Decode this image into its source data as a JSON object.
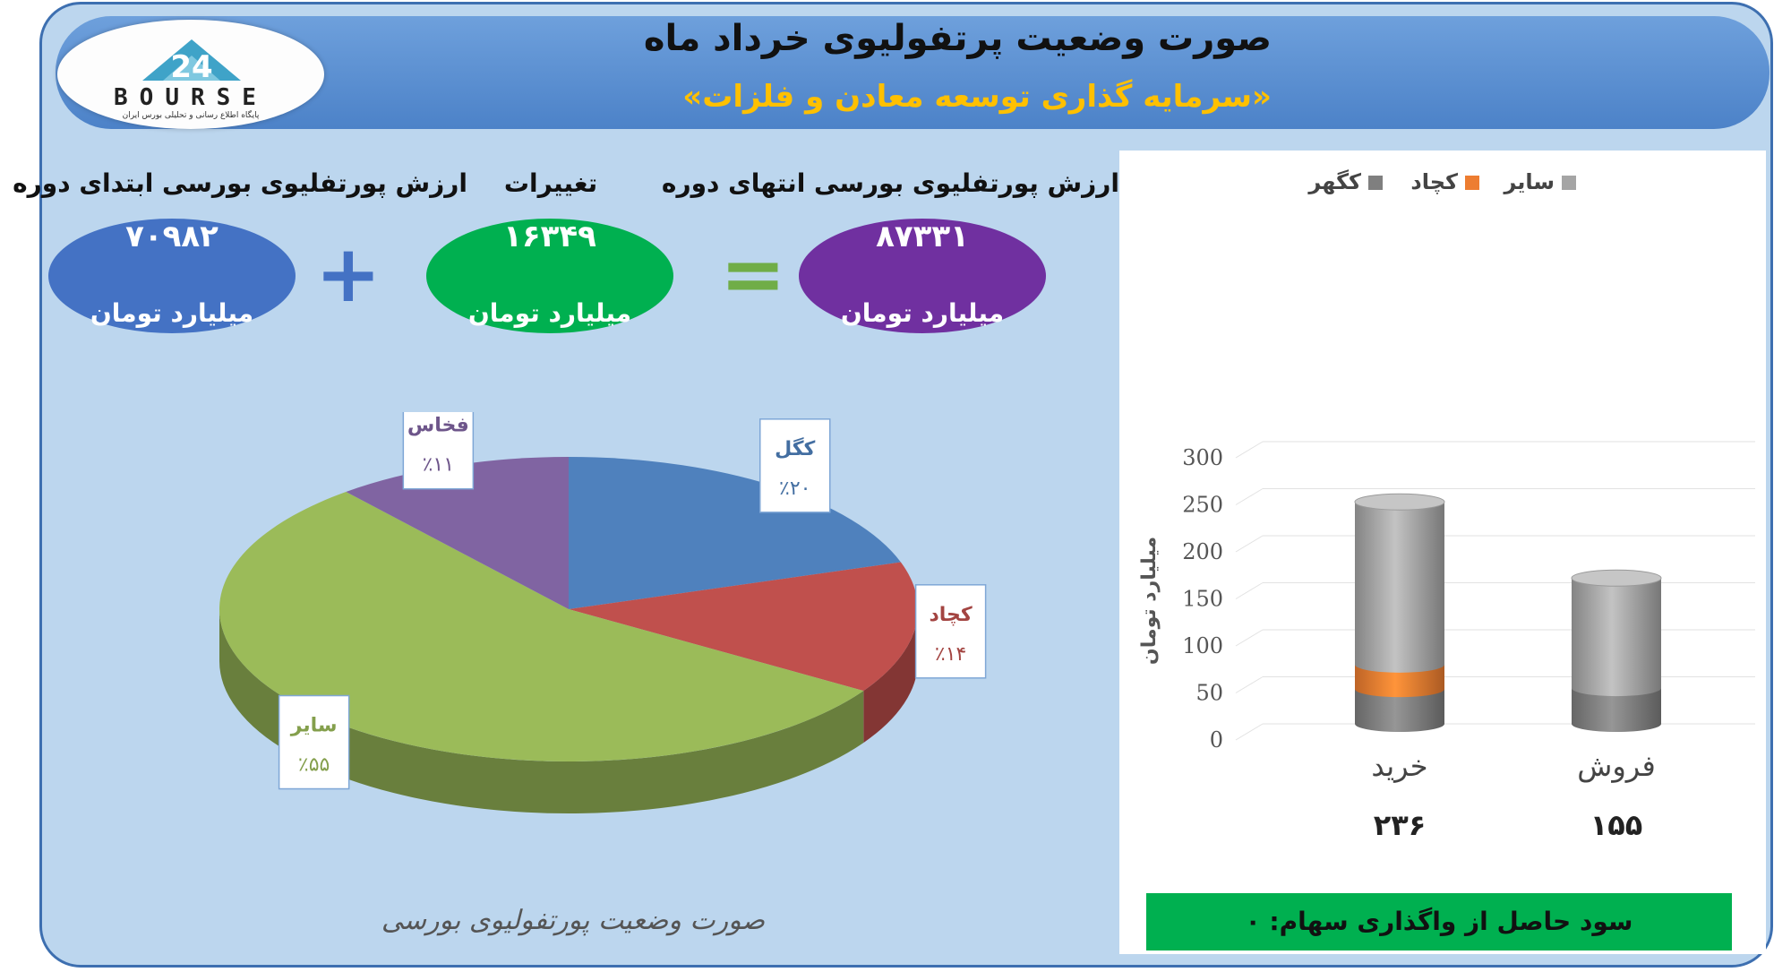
{
  "header": {
    "title": "صورت وضعیت پرتفولیوی خرداد ماه",
    "subtitle": "«سرمایه گذاری توسعه معادن و فلزات»",
    "logo_text": "BOURSE",
    "logo_caption": "پایگاه اطلاع رسانی و تحلیلی بورس ایران"
  },
  "summary": {
    "start_label": "ارزش پورتفلیوی بورسی ابتدای دوره",
    "start_value": "۷۰۹۸۲",
    "change_label": "تغییرات",
    "change_value": "۱۶۳۴۹",
    "end_label": "ارزش پورتفلیوی بورسی انتهای دوره",
    "end_value": "۸۷۳۳۱",
    "unit": "میلیارد تومان",
    "plus": "+",
    "equals": "=",
    "colors": {
      "start": "#4472c4",
      "change": "#00b050",
      "end": "#7030a0",
      "plus": "#4472c4",
      "equals": "#70ad47"
    }
  },
  "profit_text": "سود حاصل از واگذاری سهام: ۰",
  "chart_data": [
    {
      "type": "pie",
      "title": "صورت وضعیت پورتفولیوی بورسی",
      "slices": [
        {
          "name": "کگل",
          "value": 20,
          "label": "٪۲۰",
          "color": "#4f81bd"
        },
        {
          "name": "کچاد",
          "value": 14,
          "label": "٪۱۴",
          "color": "#c0504d"
        },
        {
          "name": "سایر",
          "value": 55,
          "label": "٪۵۵",
          "color": "#9bbb59"
        },
        {
          "name": "فخاس",
          "value": 11,
          "label": "٪۱۱",
          "color": "#8064a2"
        }
      ]
    },
    {
      "type": "bar",
      "stacked": true,
      "ylabel": "میلیارد تومان",
      "ylim": [
        0,
        300
      ],
      "yticks": [
        "300",
        "250",
        "200",
        "150",
        "100",
        "50",
        "0"
      ],
      "categories": [
        "خرید",
        "فروش"
      ],
      "category_totals": [
        "۲۳۶",
        "۱۵۵"
      ],
      "legend": [
        "سایر",
        "کچاد",
        "کگهر"
      ],
      "legend_position": "top",
      "series": [
        {
          "name": "کگهر",
          "values": [
            37,
            38
          ],
          "color": "#7f7f7f"
        },
        {
          "name": "کچاد",
          "values": [
            26,
            0
          ],
          "color": "#ed7d31"
        },
        {
          "name": "سایر",
          "values": [
            173,
            117
          ],
          "color": "#a5a5a5"
        }
      ]
    }
  ]
}
